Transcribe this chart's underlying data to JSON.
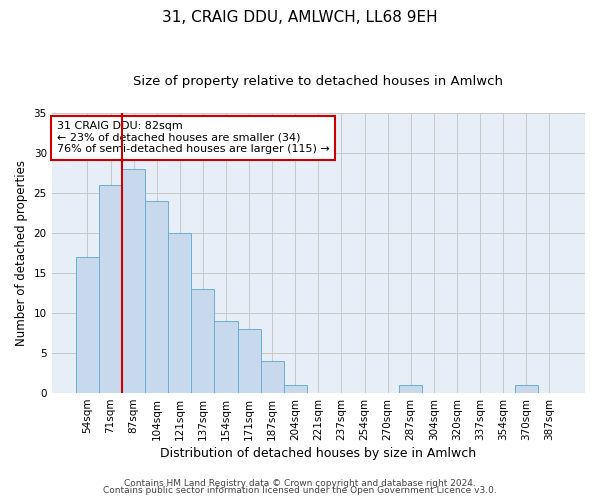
{
  "title1": "31, CRAIG DDU, AMLWCH, LL68 9EH",
  "title2": "Size of property relative to detached houses in Amlwch",
  "xlabel": "Distribution of detached houses by size in Amlwch",
  "ylabel": "Number of detached properties",
  "categories": [
    "54sqm",
    "71sqm",
    "87sqm",
    "104sqm",
    "121sqm",
    "137sqm",
    "154sqm",
    "171sqm",
    "187sqm",
    "204sqm",
    "221sqm",
    "237sqm",
    "254sqm",
    "270sqm",
    "287sqm",
    "304sqm",
    "320sqm",
    "337sqm",
    "354sqm",
    "370sqm",
    "387sqm"
  ],
  "values": [
    17,
    26,
    28,
    24,
    20,
    13,
    9,
    8,
    4,
    1,
    0,
    0,
    0,
    0,
    1,
    0,
    0,
    0,
    0,
    1,
    0
  ],
  "bar_color": "#c8d9ee",
  "bar_edge_color": "#6baed6",
  "red_line_x": 1.5,
  "red_line_color": "#cc0000",
  "annotation_text_line1": "31 CRAIG DDU: 82sqm",
  "annotation_text_line2": "← 23% of detached houses are smaller (34)",
  "annotation_text_line3": "76% of semi-detached houses are larger (115) →",
  "annotation_box_edge_color": "#cc0000",
  "ylim": [
    0,
    35
  ],
  "yticks": [
    0,
    5,
    10,
    15,
    20,
    25,
    30,
    35
  ],
  "grid_color": "#c8c8c8",
  "plot_bg_color": "#e8eef8",
  "fig_bg_color": "#ffffff",
  "footer1": "Contains HM Land Registry data © Crown copyright and database right 2024.",
  "footer2": "Contains public sector information licensed under the Open Government Licence v3.0.",
  "title1_fontsize": 11,
  "title2_fontsize": 9.5,
  "xlabel_fontsize": 9,
  "ylabel_fontsize": 8.5,
  "tick_fontsize": 7.5,
  "annotation_fontsize": 8,
  "footer_fontsize": 6.5
}
